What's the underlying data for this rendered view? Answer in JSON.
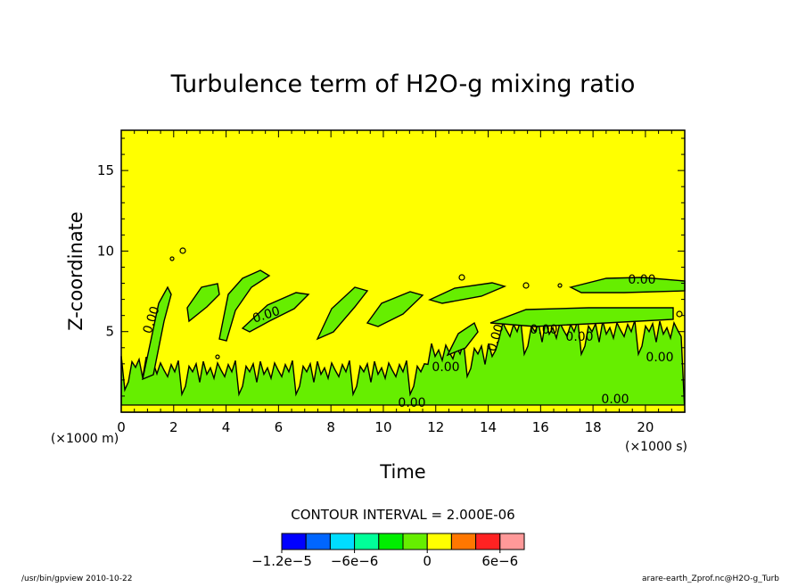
{
  "chart_data": {
    "type": "heatmap",
    "title": "Turbulence term of H2O-g mixing ratio",
    "xlabel": "Time",
    "ylabel": "Z-coordinate",
    "x_unit": "(×1000 s)",
    "y_unit": "(×1000 m)",
    "xlim": [
      0,
      21.5
    ],
    "ylim": [
      0,
      17.5
    ],
    "x_ticks": [
      "0",
      "2",
      "4",
      "6",
      "8",
      "10",
      "12",
      "14",
      "16",
      "18",
      "20"
    ],
    "y_ticks": [
      "5",
      "10",
      "15"
    ],
    "contour_interval_text": "CONTOUR INTERVAL = 2.000E-06",
    "contour_labels": [
      "0.00",
      "0.00",
      "0.00",
      "0.00",
      "0.00",
      "0.00",
      "0.00",
      "0.00",
      "0.00",
      "0.00"
    ],
    "colorbar": {
      "levels": [
        -1.2e-05,
        -1e-05,
        -8e-06,
        -6e-06,
        -4e-06,
        -2e-06,
        0,
        2e-06,
        4e-06,
        6e-06,
        8e-06
      ],
      "colors": [
        "#0000ff",
        "#0066ff",
        "#00ddff",
        "#00ff99",
        "#00ee00",
        "#66ee00",
        "#ffff00",
        "#ff7700",
        "#ff2222",
        "#ff9999"
      ],
      "tick_labels": [
        "−1.2e−5",
        "−6e−6",
        "0",
        "6e−6"
      ],
      "tick_values": [
        -1.2e-05,
        -6e-06,
        0,
        6e-06
      ]
    },
    "regions": [
      {
        "level": 0,
        "color": "#ffff00",
        "description": "background, near-zero values"
      },
      {
        "level": -2e-06,
        "color": "#66ee00",
        "description": "negative layer below about z = 4000 m and plumes between 5000–9000 m"
      }
    ],
    "grid": false
  },
  "footer": {
    "left": "/usr/bin/gpview  2010-10-22",
    "right": "arare-earth_Zprof.nc@H2O-g_Turb"
  }
}
